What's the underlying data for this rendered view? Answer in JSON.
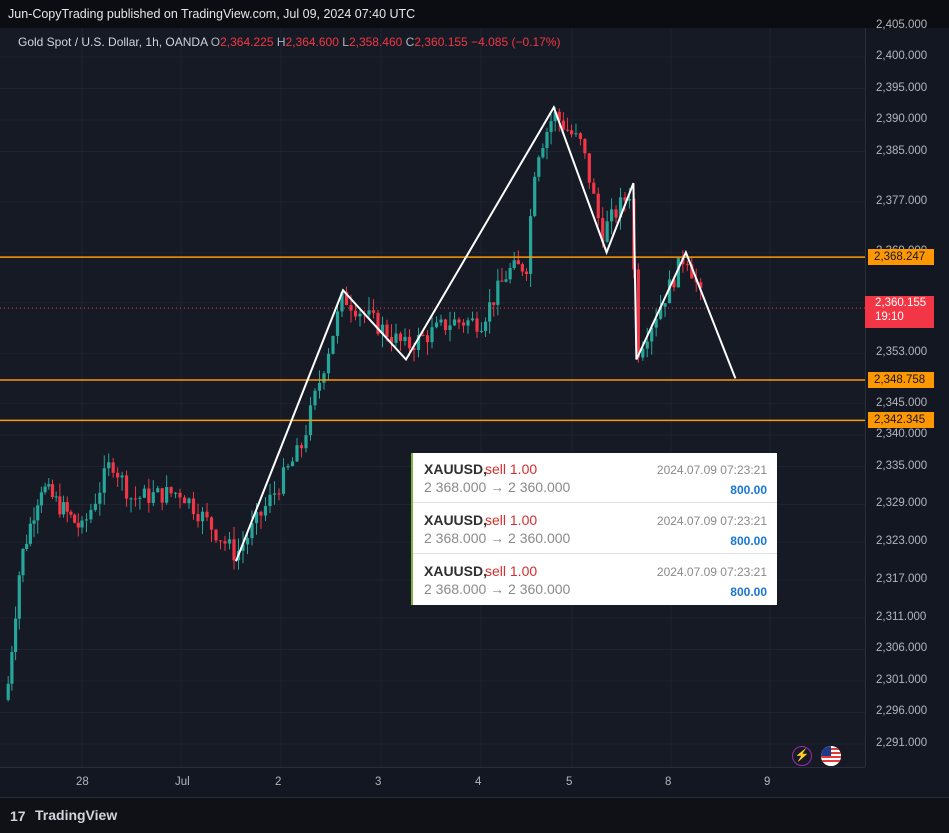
{
  "header": {
    "publisher_text": "Jun-CopyTrading published on TradingView.com, Jul 09, 2024 07:40 UTC"
  },
  "legend": {
    "symbol": "Gold Spot / U.S. Dollar, 1h, OANDA",
    "o_label": "O",
    "o_value": "2,364.225",
    "h_label": "H",
    "h_value": "2,364.600",
    "l_label": "L",
    "l_value": "2,358.460",
    "c_label": "C",
    "c_value": "2,360.155",
    "change": "−4.085 (−0.17%)"
  },
  "chart_data": {
    "type": "candlestick",
    "symbol": "Gold Spot / U.S. Dollar",
    "interval": "1h",
    "y_ticks": [
      "2,291.000",
      "2,296.000",
      "2,301.000",
      "2,306.000",
      "2,311.000",
      "2,317.000",
      "2,323.000",
      "2,329.000",
      "2,335.000",
      "2,340.000",
      "2,345.000",
      "2,353.000",
      "2,361.000",
      "2,369.000",
      "2,377.000",
      "2,385.000",
      "2,390.000",
      "2,395.000",
      "2,400.000",
      "2,405.000"
    ],
    "x_ticks": [
      "28",
      "Jul",
      "2",
      "3",
      "4",
      "5",
      "8",
      "9"
    ],
    "horizontal_levels": [
      2368.247,
      2348.758,
      2342.345
    ],
    "horizontal_level_labels": [
      "2,368.247",
      "2,348.758",
      "2,342.345"
    ],
    "current_price": "2,360.155",
    "countdown": "19:10",
    "zigzag_points": [
      [
        2.55,
        2320
      ],
      [
        3.62,
        2363
      ],
      [
        4.25,
        2352
      ],
      [
        5.8,
        2392
      ],
      [
        6.35,
        2369
      ],
      [
        6.62,
        2380
      ],
      [
        6.65,
        2352
      ],
      [
        7.15,
        2369
      ],
      [
        7.65,
        2349
      ]
    ],
    "colors": {
      "up": "#26a69a",
      "down": "#f23645",
      "level": "#ff9800",
      "zigzag": "#ffffff"
    }
  },
  "orders": [
    {
      "symbol": "XAUUSD,",
      "side": "sell 1.00",
      "datetime": "2024.07.09 07:23:21",
      "route": "2 368.000 → 2 360.000",
      "amount": "800.00"
    },
    {
      "symbol": "XAUUSD,",
      "side": "sell 1.00",
      "datetime": "2024.07.09 07:23:21",
      "route": "2 368.000 → 2 360.000",
      "amount": "800.00"
    },
    {
      "symbol": "XAUUSD,",
      "side": "sell 1.00",
      "datetime": "2024.07.09 07:23:21",
      "route": "2 368.000 → 2 360.000",
      "amount": "800.00"
    }
  ],
  "footer": {
    "brand": "TradingView",
    "logo_glyph": "17"
  },
  "icons": {
    "lightning": "lightning-icon",
    "flag": "us-flag-icon"
  }
}
